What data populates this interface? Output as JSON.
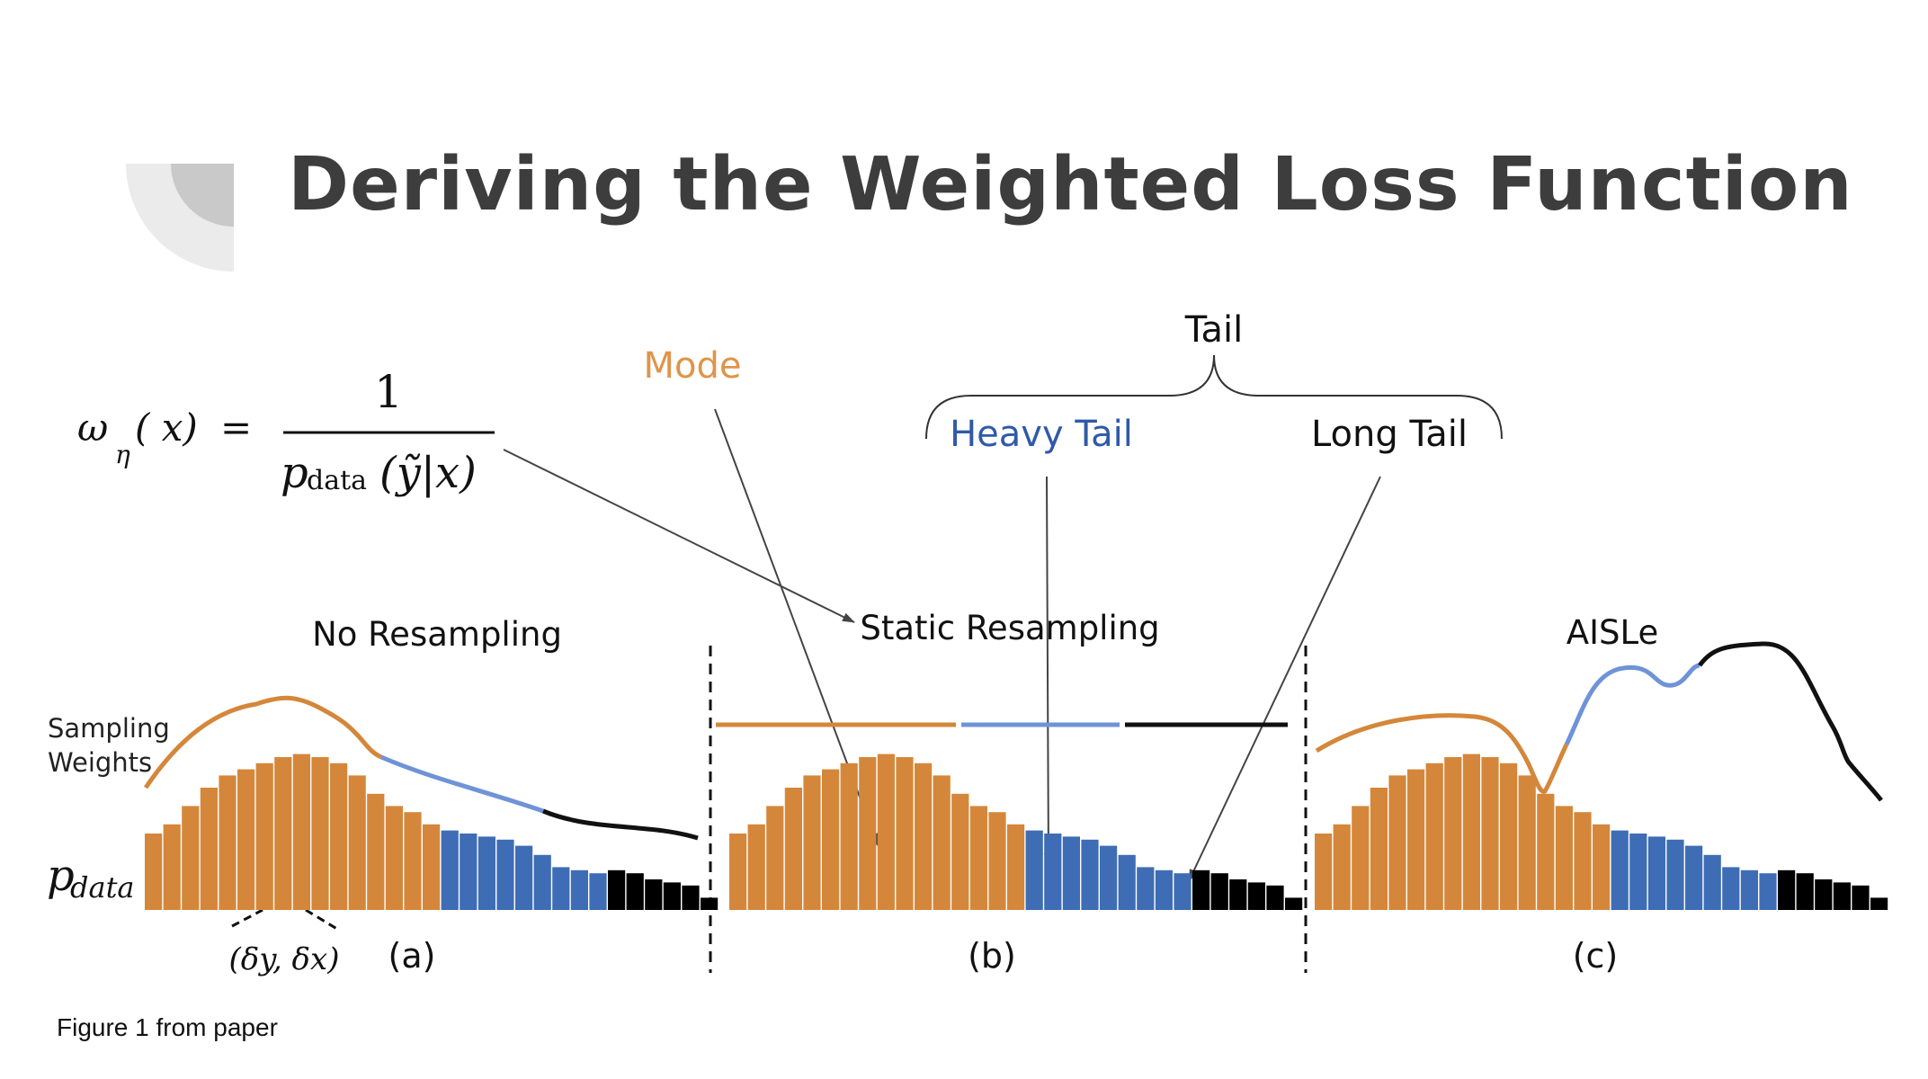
{
  "title": "Deriving the Weighted Loss Function",
  "caption": "Figure 1 from paper",
  "formula": {
    "lhs_omega": "ω",
    "lhs_sub": "η",
    "lhs_arg": "( x)",
    "eq": "=",
    "numerator": "1",
    "den_p": "p",
    "den_sub": "data",
    "den_arg": "(ỹ|x)"
  },
  "annotations": {
    "mode": "Mode",
    "tail": "Tail",
    "heavy_tail": "Heavy Tail",
    "long_tail": "Long Tail"
  },
  "panels": {
    "a": {
      "title": "No Resampling",
      "label": "(a)"
    },
    "b": {
      "title": "Static Resampling",
      "label": "(b)"
    },
    "c": {
      "title": "AISLe",
      "label": "(c)"
    }
  },
  "axis": {
    "sampling_weights_line1": "Sampling",
    "sampling_weights_line2": "Weights",
    "pdata_p": "p",
    "pdata_sub": "data",
    "delta": "(δy, δx)"
  },
  "colors": {
    "mode": "#d4873a",
    "heavy_tail": "#3e6db5",
    "long_tail": "#000000",
    "mode_text": "#e0944a",
    "heavy_text": "#2f5aa8",
    "title": "#3d3d3d"
  },
  "histogram": {
    "values": [
      25,
      28,
      34,
      40,
      44,
      46,
      48,
      50,
      51,
      50,
      48,
      44,
      38,
      34,
      32,
      28,
      26,
      25,
      24,
      23,
      21,
      18,
      14,
      13,
      12,
      13,
      12,
      10,
      9,
      8,
      4
    ],
    "mode_count": 16,
    "heavy_count": 9,
    "long_count": 6
  }
}
